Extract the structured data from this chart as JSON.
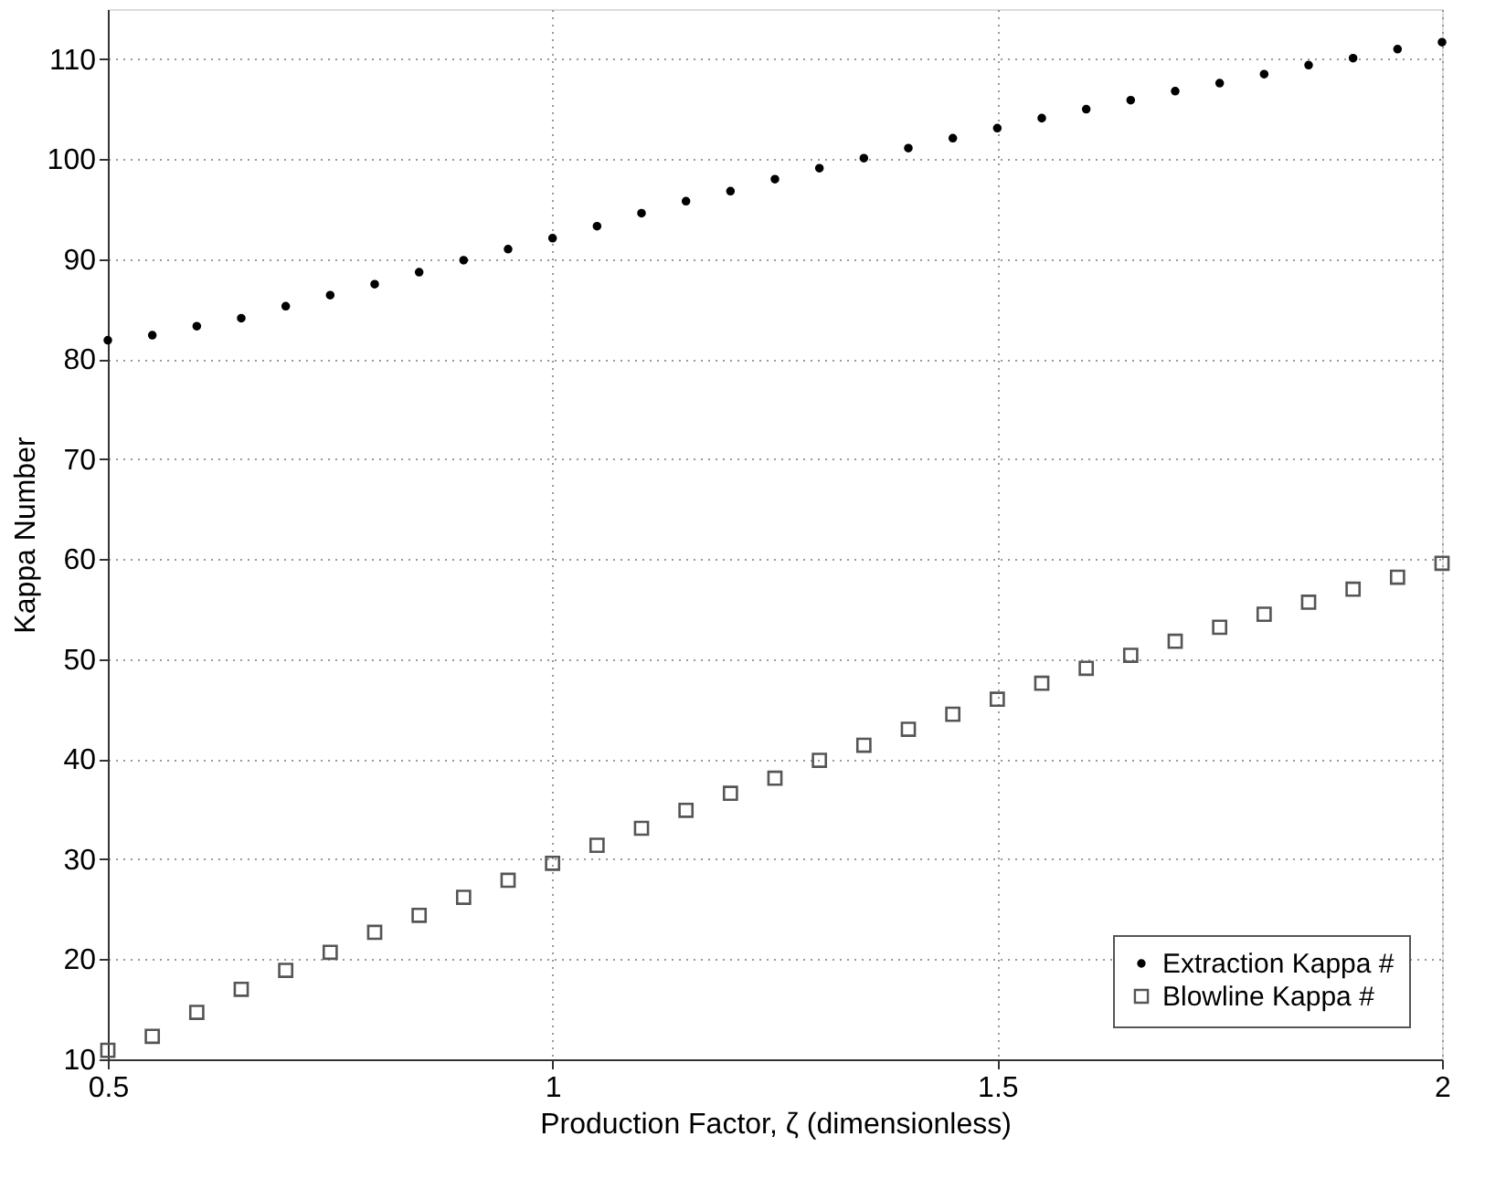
{
  "chart_data": {
    "type": "scatter",
    "xlabel": "Production Factor, ζ (dimensionless)",
    "ylabel": "Kappa Number",
    "x": [
      0.5,
      0.55,
      0.6,
      0.65,
      0.7,
      0.75,
      0.8,
      0.85,
      0.9,
      0.95,
      1.0,
      1.05,
      1.1,
      1.15,
      1.2,
      1.25,
      1.3,
      1.35,
      1.4,
      1.45,
      1.5,
      1.55,
      1.6,
      1.65,
      1.7,
      1.75,
      1.8,
      1.85,
      1.9,
      1.95,
      2.0
    ],
    "series": [
      {
        "name": "Extraction Kappa #",
        "color": "#000000",
        "marker": "circle",
        "values": [
          81.9,
          82.4,
          83.3,
          84.1,
          85.3,
          86.4,
          87.5,
          88.7,
          89.9,
          91.0,
          92.1,
          93.3,
          94.6,
          95.8,
          96.8,
          98.0,
          99.1,
          100.1,
          101.1,
          102.1,
          103.1,
          104.1,
          105.0,
          105.9,
          106.8,
          107.6,
          108.5,
          109.4,
          110.1,
          111.0,
          111.7
        ]
      },
      {
        "name": "Blowline Kappa #",
        "color": "#555555",
        "marker": "square",
        "values": [
          10.9,
          12.3,
          14.7,
          17.0,
          18.9,
          20.7,
          22.7,
          24.4,
          26.2,
          27.9,
          29.6,
          31.4,
          33.1,
          34.9,
          36.6,
          38.1,
          39.9,
          41.4,
          43.0,
          44.5,
          46.0,
          47.6,
          49.1,
          50.4,
          51.8,
          53.2,
          54.5,
          55.7,
          57.0,
          58.2,
          59.6
        ]
      }
    ],
    "xlim": [
      0.5,
      2
    ],
    "xticks": [
      0.5,
      1,
      1.5,
      2
    ],
    "ylim": [
      10,
      115
    ],
    "yticks": [
      10,
      20,
      30,
      40,
      50,
      60,
      70,
      80,
      90,
      100,
      110
    ],
    "grid": true,
    "legend": "bottom right"
  }
}
